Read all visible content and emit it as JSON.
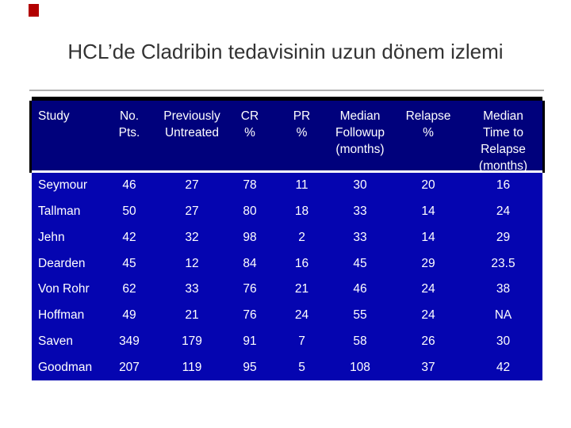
{
  "slide": {
    "title": "HCL’de Cladribin tedavisinin uzun dönem izlemi"
  },
  "colors": {
    "accent_red": "#b20000",
    "header_bg": "#00017c",
    "body_bg": "#0505b0",
    "table_text": "#ffffff",
    "border": "#000000",
    "header_separator": "#ffffff",
    "title_text": "#333333"
  },
  "table": {
    "columns": [
      {
        "lines": [
          "Study"
        ]
      },
      {
        "lines": [
          "No.",
          "Pts."
        ]
      },
      {
        "lines": [
          "Previously",
          "Untreated"
        ]
      },
      {
        "lines": [
          "CR",
          "%"
        ]
      },
      {
        "lines": [
          "PR",
          "%"
        ]
      },
      {
        "lines": [
          "Median",
          "Followup",
          "(months)"
        ]
      },
      {
        "lines": [
          "Relapse",
          "%"
        ]
      },
      {
        "lines": [
          "Median",
          "Time to",
          "Relapse",
          "(months)"
        ]
      }
    ],
    "rows": [
      [
        "Seymour",
        "46",
        "27",
        "78",
        "11",
        "30",
        "20",
        "16"
      ],
      [
        "Tallman",
        "50",
        "27",
        "80",
        "18",
        "33",
        "14",
        "24"
      ],
      [
        "Jehn",
        "42",
        "32",
        "98",
        "2",
        "33",
        "14",
        "29"
      ],
      [
        "Dearden",
        "45",
        "12",
        "84",
        "16",
        "45",
        "29",
        "23.5"
      ],
      [
        "Von Rohr",
        "62",
        "33",
        "76",
        "21",
        "46",
        "24",
        "38"
      ],
      [
        "Hoffman",
        "49",
        "21",
        "76",
        "24",
        "55",
        "24",
        "NA"
      ],
      [
        "Saven",
        "349",
        "179",
        "91",
        "7",
        "58",
        "26",
        "30"
      ],
      [
        "Goodman",
        "207",
        "119",
        "95",
        "5",
        "108",
        "37",
        "42"
      ]
    ]
  },
  "chart_data": {
    "type": "table",
    "title": "HCL’de Cladribin tedavisinin uzun dönem izlemi",
    "columns": [
      "Study",
      "No. Pts.",
      "Previously Untreated",
      "CR %",
      "PR %",
      "Median Followup (months)",
      "Relapse %",
      "Median Time to Relapse (months)"
    ],
    "rows": [
      [
        "Seymour",
        46,
        27,
        78,
        11,
        30,
        20,
        16
      ],
      [
        "Tallman",
        50,
        27,
        80,
        18,
        33,
        14,
        24
      ],
      [
        "Jehn",
        42,
        32,
        98,
        2,
        33,
        14,
        29
      ],
      [
        "Dearden",
        45,
        12,
        84,
        16,
        45,
        29,
        23.5
      ],
      [
        "Von Rohr",
        62,
        33,
        76,
        21,
        46,
        24,
        38
      ],
      [
        "Hoffman",
        49,
        21,
        76,
        24,
        55,
        24,
        "NA"
      ],
      [
        "Saven",
        349,
        179,
        91,
        7,
        58,
        26,
        30
      ],
      [
        "Goodman",
        207,
        119,
        95,
        5,
        108,
        37,
        42
      ]
    ]
  }
}
